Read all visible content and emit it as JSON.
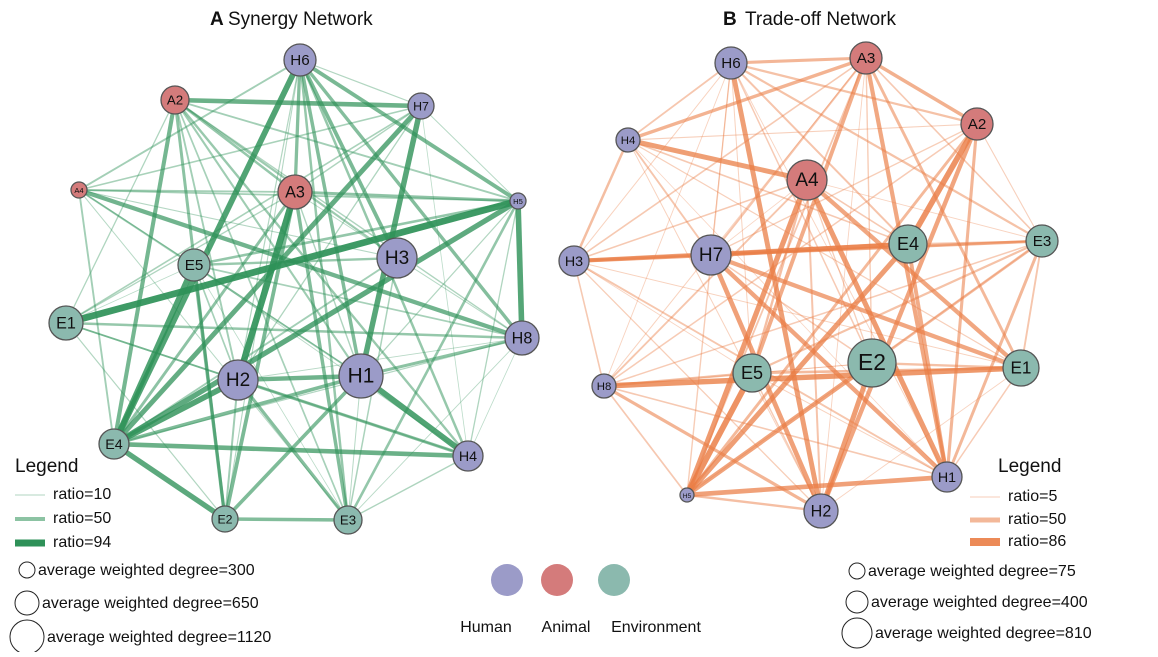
{
  "panels": [
    {
      "letter": "A",
      "title": "Synergy Network",
      "nodes": [
        "H6",
        "A2",
        "H7",
        "A4",
        "A3",
        "H5",
        "E5",
        "H3",
        "E1",
        "H8",
        "H2",
        "H1",
        "E4",
        "H4",
        "E2",
        "E3"
      ],
      "legend": {
        "title": "Legend",
        "lines": [
          "ratio=10",
          "ratio=50",
          "ratio=94"
        ],
        "sizes": [
          "average weighted degree=300",
          "average weighted degree=650",
          "average weighted degree=1120"
        ]
      }
    },
    {
      "letter": "B",
      "title": "Trade-off Network",
      "nodes": [
        "H6",
        "A3",
        "A2",
        "H4",
        "A4",
        "E4",
        "E3",
        "H3",
        "H7",
        "H8",
        "E5",
        "E2",
        "E1",
        "H1",
        "H5",
        "H2"
      ],
      "legend": {
        "title": "Legend",
        "lines": [
          "ratio=5",
          "ratio=50",
          "ratio=86"
        ],
        "sizes": [
          "average weighted degree=75",
          "average weighted degree=400",
          "average weighted degree=810"
        ]
      }
    }
  ],
  "groups": [
    "Human",
    "Animal",
    "Environment"
  ]
}
